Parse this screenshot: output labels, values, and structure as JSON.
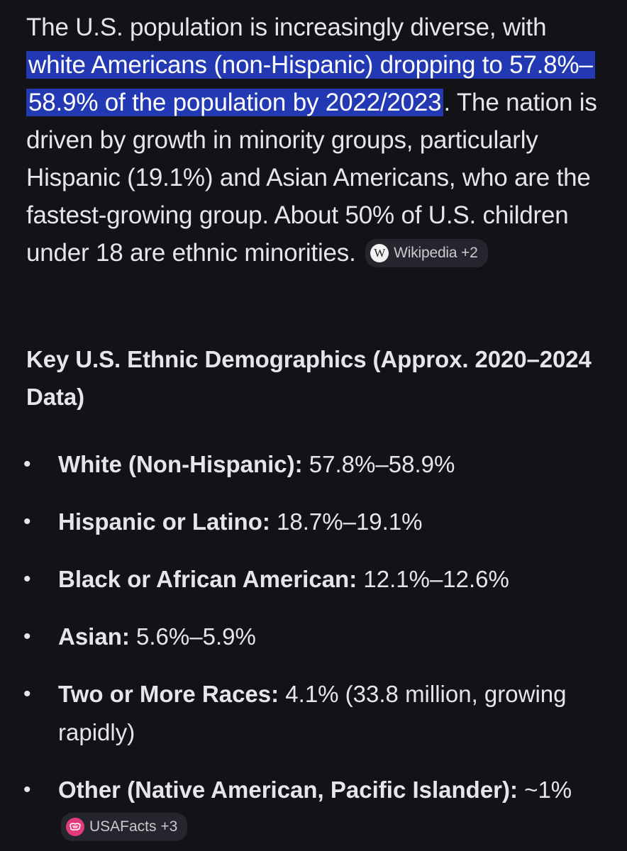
{
  "intro": {
    "text_before": "The U.S. population is increasingly diverse, with ",
    "highlight": "white Americans (non-Hispanic) dropping to 57.8%–58.9% of the population by 2022/2023",
    "text_after": ". The nation is driven by growth in minority groups, particularly Hispanic (19.1%) and Asian Americans, who are the fastest-growing group. About 50% of U.S. children under 18 are ethnic minorities.",
    "source_chip": {
      "icon": "W",
      "label": "Wikipedia +2"
    }
  },
  "section": {
    "title": "Key U.S. Ethnic Demographics (Approx. 2020–2024 Data)",
    "items": [
      {
        "label": "White (Non-Hispanic):",
        "value": " 57.8%–58.9%"
      },
      {
        "label": "Hispanic or Latino:",
        "value": " 18.7%–19.1%"
      },
      {
        "label": "Black or African American:",
        "value": " 12.1%–12.6%"
      },
      {
        "label": "Asian:",
        "value": " 5.6%–5.9%"
      },
      {
        "label": "Two or More Races:",
        "value": " 4.1% (33.8 million, growing rapidly)"
      },
      {
        "label": "Other (Native American, Pacific Islander):",
        "value": " ~1%"
      }
    ],
    "source_chip": {
      "label": "USAFacts +3"
    }
  },
  "colors": {
    "background": "#121217",
    "highlight": "#2239b3",
    "chip_background": "#25262d",
    "usafacts_icon": "#e23a7a"
  }
}
